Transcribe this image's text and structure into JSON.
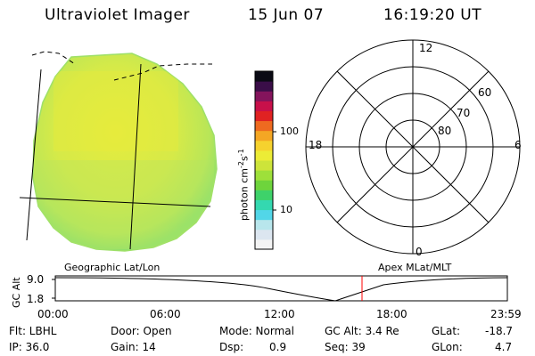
{
  "header": {
    "title": "Ultraviolet Imager",
    "date": "15 Jun 07",
    "time": "16:19:20 UT"
  },
  "colorbar": {
    "unit_label_main": "photon cm",
    "unit_exp1": "-2",
    "unit_s": "s",
    "unit_exp2": "-1",
    "tick_100": "100",
    "tick_10": "10",
    "colors": [
      "#f4f4f4",
      "#dce6f0",
      "#b8e6ec",
      "#52d6e8",
      "#34d8b0",
      "#3ed26a",
      "#6ed43c",
      "#9ee03a",
      "#cde43a",
      "#ecec36",
      "#f6d22e",
      "#f4a624",
      "#ee6a20",
      "#e02222",
      "#c8104a",
      "#84145c",
      "#3a0e48",
      "#0a0a14"
    ]
  },
  "polar_plot": {
    "mlt_top": "12",
    "mlt_bottom": "0",
    "mlt_left": "18",
    "mlt_right": "6",
    "lat_60": "60",
    "lat_70": "70",
    "lat_80": "80"
  },
  "image_panel": {
    "fill_color": "#d6ec4a",
    "edge_color": "#8ee06a"
  },
  "orbit": {
    "left_label": "Geographic Lat/Lon",
    "right_label": "Apex MLat/MLT",
    "axis_label": "GC Alt",
    "y_max": "9.0",
    "y_min": "1.8",
    "x_ticks": [
      "00:00",
      "06:00",
      "12:00",
      "18:00",
      "23:59"
    ],
    "marker_color": "#ff0000"
  },
  "footer": {
    "flt": "Flt: LBHL",
    "ip": "IP: 36.0",
    "door": "Door: Open",
    "gain": "Gain: 14",
    "mode": "Mode: Normal",
    "dsp_label": "Dsp:",
    "dsp_value": "0.9",
    "gc_alt": "GC Alt: 3.4 Re",
    "seq": "Seq: 39",
    "glat_label": "GLat:",
    "glat_value": "-18.7",
    "glon_label": "GLon:",
    "glon_value": "4.7"
  }
}
